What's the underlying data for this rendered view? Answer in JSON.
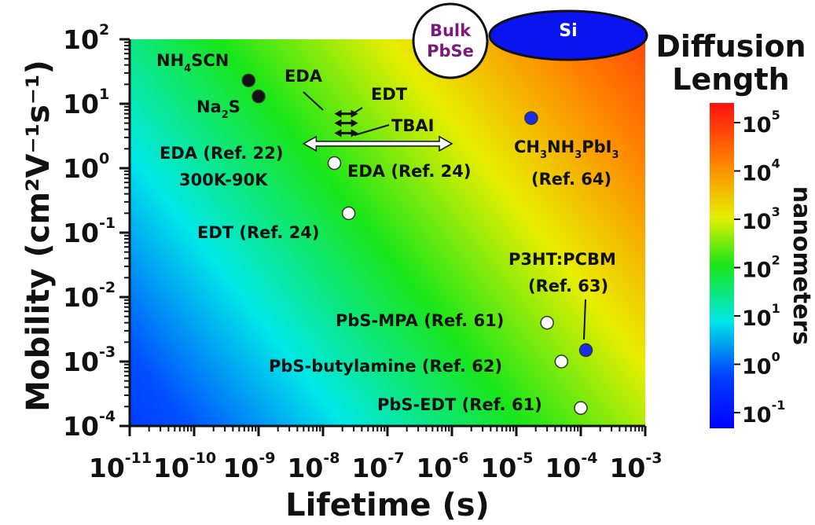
{
  "chart_data": {
    "type": "scatter",
    "xlabel": "Lifetime (s)",
    "ylabel": "Mobility (cm²V⁻¹s⁻¹)",
    "x_scale": "log",
    "y_scale": "log",
    "xlim": [
      1e-11,
      0.001
    ],
    "ylim": [
      0.0001,
      100
    ],
    "x_ticks": [
      {
        "base": "10",
        "exp": "-11"
      },
      {
        "base": "10",
        "exp": "-10"
      },
      {
        "base": "10",
        "exp": "-9"
      },
      {
        "base": "10",
        "exp": "-8"
      },
      {
        "base": "10",
        "exp": "-7"
      },
      {
        "base": "10",
        "exp": "-6"
      },
      {
        "base": "10",
        "exp": "-5"
      },
      {
        "base": "10",
        "exp": "-4"
      },
      {
        "base": "10",
        "exp": "-3"
      }
    ],
    "y_ticks": [
      {
        "base": "10",
        "exp": "-4"
      },
      {
        "base": "10",
        "exp": "-3"
      },
      {
        "base": "10",
        "exp": "-2"
      },
      {
        "base": "10",
        "exp": "-1"
      },
      {
        "base": "10",
        "exp": "0"
      },
      {
        "base": "10",
        "exp": "1"
      },
      {
        "base": "10",
        "exp": "2"
      }
    ],
    "points": [
      {
        "label": "NH4SCN",
        "x": 7e-10,
        "y": 23,
        "color": "#111111"
      },
      {
        "label": "Na2S",
        "x": 1e-09,
        "y": 13,
        "color": "#111111"
      },
      {
        "label": "EDA (Ref. 24)",
        "x": 1.5e-08,
        "y": 1.2,
        "color": "#ffffff"
      },
      {
        "label": "EDT (Ref. 24)",
        "x": 2.5e-08,
        "y": 0.2,
        "color": "#ffffff"
      },
      {
        "label": "CH3NH3PbI3 (Ref. 64)",
        "x": 1.7e-05,
        "y": 6,
        "color": "#1a2ee6"
      },
      {
        "label": "P3HT:PCBM (Ref. 63)",
        "x": 0.00012,
        "y": 0.0015,
        "color": "#1a2ee6"
      },
      {
        "label": "PbS-MPA (Ref. 61)",
        "x": 3e-05,
        "y": 0.004,
        "color": "#ffffff"
      },
      {
        "label": "PbS-butylamine (Ref. 62)",
        "x": 5e-05,
        "y": 0.001,
        "color": "#ffffff"
      },
      {
        "label": "PbS-EDT (Ref. 61)",
        "x": 0.0001,
        "y": 0.00019,
        "color": "#ffffff"
      }
    ],
    "ranges": [
      {
        "label": "EDA",
        "x": [
          1.5e-08,
          3.5e-08
        ],
        "y": 7,
        "color": "#111111"
      },
      {
        "label": "EDT",
        "x": [
          1.5e-08,
          3.5e-08
        ],
        "y": 5,
        "color": "#111111"
      },
      {
        "label": "TBAI",
        "x": [
          1.5e-08,
          3.5e-08
        ],
        "y": 3.5,
        "color": "#111111"
      },
      {
        "label": "EDA (Ref. 22) 300K-90K",
        "x": [
          5e-09,
          1e-06
        ],
        "y": 2.4,
        "color": "#ffffff"
      }
    ],
    "regions": [
      {
        "label": "Bulk PbSe"
      },
      {
        "label": "Si"
      }
    ],
    "colorbar": {
      "title": [
        "Diffusion",
        "Length"
      ],
      "unit": "nanometers",
      "ticks": [
        {
          "base": "10",
          "exp": "5"
        },
        {
          "base": "10",
          "exp": "4"
        },
        {
          "base": "10",
          "exp": "3"
        },
        {
          "base": "10",
          "exp": "2"
        },
        {
          "base": "10",
          "exp": "1"
        },
        {
          "base": "10",
          "exp": "0"
        },
        {
          "base": "10",
          "exp": "-1"
        }
      ],
      "colors": [
        "#ff1010",
        "#ff8000",
        "#e6ee00",
        "#19e619",
        "#00e6e6",
        "#0040ff",
        "#0000ff"
      ]
    },
    "labels": {
      "nh4scn": "NH4SCN",
      "na2s": "Na2S",
      "eda": "EDA",
      "edt": "EDT",
      "tbai": "TBAI",
      "eda_ref22": "EDA (Ref. 22)",
      "eda_ref22_temp": "300K-90K",
      "eda_ref24": "EDA (Ref. 24)",
      "edt_ref24": "EDT (Ref. 24)",
      "mapi": "CH3NH3PbI3",
      "mapi_ref": "(Ref. 64)",
      "p3ht": "P3HT:PCBM",
      "p3ht_ref": "(Ref. 63)",
      "pbs_mpa": "PbS-MPA (Ref. 61)",
      "pbs_butylamine": "PbS-butylamine (Ref. 62)",
      "pbs_edt": "PbS-EDT (Ref. 61)",
      "bulk_line1": "Bulk",
      "bulk_line2": "PbSe",
      "si": "Si"
    }
  }
}
